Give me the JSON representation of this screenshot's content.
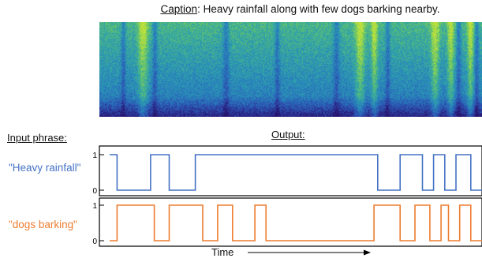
{
  "caption": {
    "label": "Caption",
    "text": ": Heavy rainfall along with few dogs barking nearby."
  },
  "input_heading": "Input phrase:",
  "output_heading": "Output:",
  "phrases": [
    {
      "text": "\"Heavy rainfall\"",
      "color": "#4472c4"
    },
    {
      "text": "\"dogs barking\"",
      "color": "#ed7d31"
    }
  ],
  "time_label": "Time",
  "colors": {
    "spectrogram_low": "#3b2a8c",
    "spectrogram_mid": "#2f8fbf",
    "spectrogram_high": "#7fcf5a",
    "series_1": "#4472c4",
    "series_2": "#ed7d31"
  },
  "chart_data": [
    {
      "type": "line",
      "series": [
        {
          "x": [
            0,
            0.02,
            0.02,
            0.11,
            0.11,
            0.16,
            0.16,
            0.23,
            0.23,
            0.31,
            0.31,
            0.72,
            0.72,
            0.78,
            0.78,
            0.84,
            0.84,
            0.87,
            0.87,
            0.9,
            0.9,
            0.93,
            0.93,
            0.97,
            0.97,
            1.0
          ],
          "y": [
            1,
            1,
            0,
            0,
            1,
            1,
            0,
            0,
            1,
            1,
            1,
            1,
            0,
            0,
            1,
            1,
            0,
            0,
            1,
            1,
            0,
            0,
            1,
            1,
            0,
            0
          ]
        }
      ],
      "yticks": [
        "0",
        "1"
      ],
      "ylim": [
        0,
        1
      ]
    },
    {
      "type": "line",
      "series": [
        {
          "x": [
            0,
            0.02,
            0.02,
            0.12,
            0.12,
            0.16,
            0.16,
            0.22,
            0.22,
            0.25,
            0.25,
            0.29,
            0.29,
            0.33,
            0.33,
            0.39,
            0.39,
            0.42,
            0.42,
            0.71,
            0.71,
            0.78,
            0.78,
            0.82,
            0.82,
            0.86,
            0.86,
            0.89,
            0.89,
            0.91,
            0.91,
            0.94,
            0.94,
            0.97,
            0.97,
            1.0
          ],
          "y": [
            0,
            0,
            1,
            1,
            0,
            0,
            1,
            1,
            1,
            1,
            0,
            0,
            1,
            1,
            0,
            0,
            1,
            1,
            0,
            0,
            1,
            1,
            0,
            0,
            1,
            1,
            0,
            0,
            1,
            1,
            0,
            0,
            1,
            1,
            0,
            0
          ]
        }
      ],
      "yticks": [
        "0",
        "1"
      ],
      "ylim": [
        0,
        1
      ]
    }
  ]
}
